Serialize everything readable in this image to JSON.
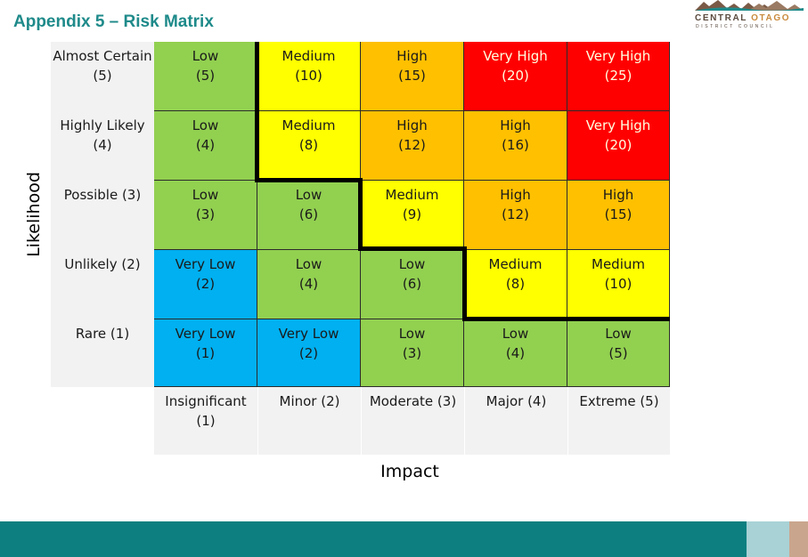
{
  "header": {
    "title": "Appendix 5 – Risk Matrix",
    "logo": {
      "name_part1": "CENTRAL ",
      "name_part2": "OTAGO",
      "subtitle": "DISTRICT COUNCIL"
    }
  },
  "axes": {
    "likelihood_label": "Likelihood",
    "impact_label": "Impact"
  },
  "likelihood_levels": [
    {
      "label": "Almost Certain (5)"
    },
    {
      "label": "Highly Likely (4)"
    },
    {
      "label": "Possible (3)"
    },
    {
      "label": "Unlikely (2)"
    },
    {
      "label": "Rare (1)"
    }
  ],
  "impact_levels": [
    {
      "label": "Insignificant (1)"
    },
    {
      "label": "Minor (2)"
    },
    {
      "label": "Moderate (3)"
    },
    {
      "label": "Major (4)"
    },
    {
      "label": "Extreme (5)"
    }
  ],
  "matrix": [
    [
      {
        "rating": "Low",
        "score": "(5)"
      },
      {
        "rating": "Medium",
        "score": "(10)"
      },
      {
        "rating": "High",
        "score": "(15)"
      },
      {
        "rating": "Very High",
        "score": "(20)"
      },
      {
        "rating": "Very High",
        "score": "(25)"
      }
    ],
    [
      {
        "rating": "Low",
        "score": "(4)"
      },
      {
        "rating": "Medium",
        "score": "(8)"
      },
      {
        "rating": "High",
        "score": "(12)"
      },
      {
        "rating": "High",
        "score": "(16)"
      },
      {
        "rating": "Very High",
        "score": "(20)"
      }
    ],
    [
      {
        "rating": "Low",
        "score": "(3)"
      },
      {
        "rating": "Low",
        "score": "(6)"
      },
      {
        "rating": "Medium",
        "score": "(9)"
      },
      {
        "rating": "High",
        "score": "(12)"
      },
      {
        "rating": "High",
        "score": "(15)"
      }
    ],
    [
      {
        "rating": "Very Low",
        "score": "(2)"
      },
      {
        "rating": "Low",
        "score": "(4)"
      },
      {
        "rating": "Low",
        "score": "(6)"
      },
      {
        "rating": "Medium",
        "score": "(8)"
      },
      {
        "rating": "Medium",
        "score": "(10)"
      }
    ],
    [
      {
        "rating": "Very Low",
        "score": "(1)"
      },
      {
        "rating": "Very Low",
        "score": "(2)"
      },
      {
        "rating": "Low",
        "score": "(3)"
      },
      {
        "rating": "Low",
        "score": "(4)"
      },
      {
        "rating": "Low",
        "score": "(5)"
      }
    ]
  ],
  "rating_colors": {
    "Very Low": "#00b0f0",
    "Low": "#92d050",
    "Medium": "#ffff00",
    "High": "#ffc000",
    "Very High": "#ff0000"
  }
}
